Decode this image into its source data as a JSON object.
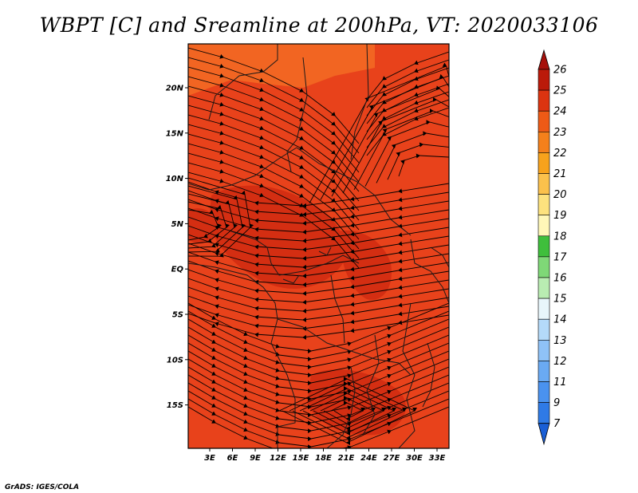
{
  "title": "WBPT [C] and Sreamline at 200hPa, VT: 2020033106",
  "credit": "GrADS: IGES/COLA",
  "map": {
    "lon_ticks": [
      "3E",
      "6E",
      "9E",
      "12E",
      "15E",
      "18E",
      "21E",
      "24E",
      "27E",
      "30E",
      "33E"
    ],
    "lat_ticks": [
      "20N",
      "15N",
      "10N",
      "5N",
      "EQ",
      "5S",
      "10S",
      "15S"
    ],
    "field_colors": {
      "c22_23": "#f26522",
      "c23_24": "#e8421b",
      "c24_25": "#d42e12"
    }
  },
  "colorbar": {
    "labels": [
      "7",
      "9",
      "11",
      "12",
      "13",
      "14",
      "15",
      "16",
      "17",
      "18",
      "19",
      "20",
      "21",
      "22",
      "23",
      "24",
      "25",
      "26"
    ],
    "colors": [
      "#1a5fd6",
      "#2f7ae6",
      "#4a92ef",
      "#6aaaf3",
      "#8fc2f7",
      "#b4daf9",
      "#e8f6fb",
      "#b9ecb2",
      "#7fd877",
      "#3fbf3c",
      "#fff7b8",
      "#fde27e",
      "#fbc14c",
      "#f7a21c",
      "#f4801b",
      "#ee5a16",
      "#dc3410",
      "#bb1a0a",
      "#9c0a06"
    ],
    "under_color": "#1a5fd6",
    "over_color": "#a6100b"
  }
}
